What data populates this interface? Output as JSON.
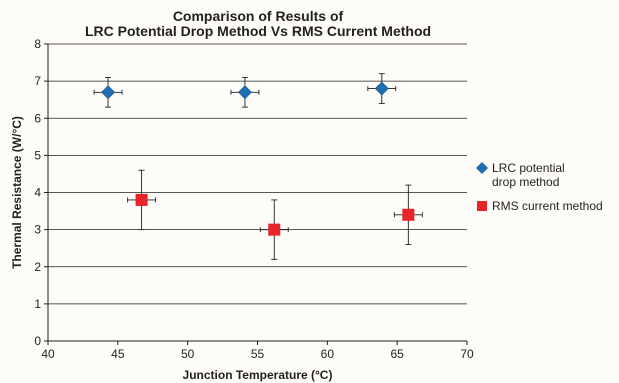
{
  "chart_data": {
    "type": "scatter",
    "title": [
      "Comparison of Results of",
      "LRC Potential Drop Method Vs RMS Current Method"
    ],
    "xlabel": "Junction Temperature (°C)",
    "ylabel": "Thermal Resistance (W/°C)",
    "xlim": [
      40,
      70
    ],
    "ylim": [
      0,
      8
    ],
    "xticks": [
      "40",
      "45",
      "50",
      "55",
      "60",
      "65",
      "70"
    ],
    "yticks": [
      "0",
      "1",
      "2",
      "3",
      "4",
      "5",
      "6",
      "7",
      "8"
    ],
    "grid": "horizontal",
    "legend_position": "right",
    "series": [
      {
        "name": [
          "LRC potential",
          "drop method"
        ],
        "marker": "diamond",
        "color": "#1f6eb4",
        "points": [
          {
            "x": 44.3,
            "y": 6.7,
            "xerr": 1.0,
            "yerr": 0.4
          },
          {
            "x": 54.1,
            "y": 6.7,
            "xerr": 1.0,
            "yerr": 0.4
          },
          {
            "x": 63.9,
            "y": 6.8,
            "xerr": 1.0,
            "yerr": 0.4
          }
        ]
      },
      {
        "name": [
          "RMS current method"
        ],
        "marker": "square",
        "color": "#e8232a",
        "points": [
          {
            "x": 46.7,
            "y": 3.8,
            "xerr": 1.0,
            "yerr": 0.8
          },
          {
            "x": 56.2,
            "y": 3.0,
            "xerr": 1.0,
            "yerr": 0.8
          },
          {
            "x": 65.8,
            "y": 3.4,
            "xerr": 1.0,
            "yerr": 0.8
          }
        ]
      }
    ]
  }
}
